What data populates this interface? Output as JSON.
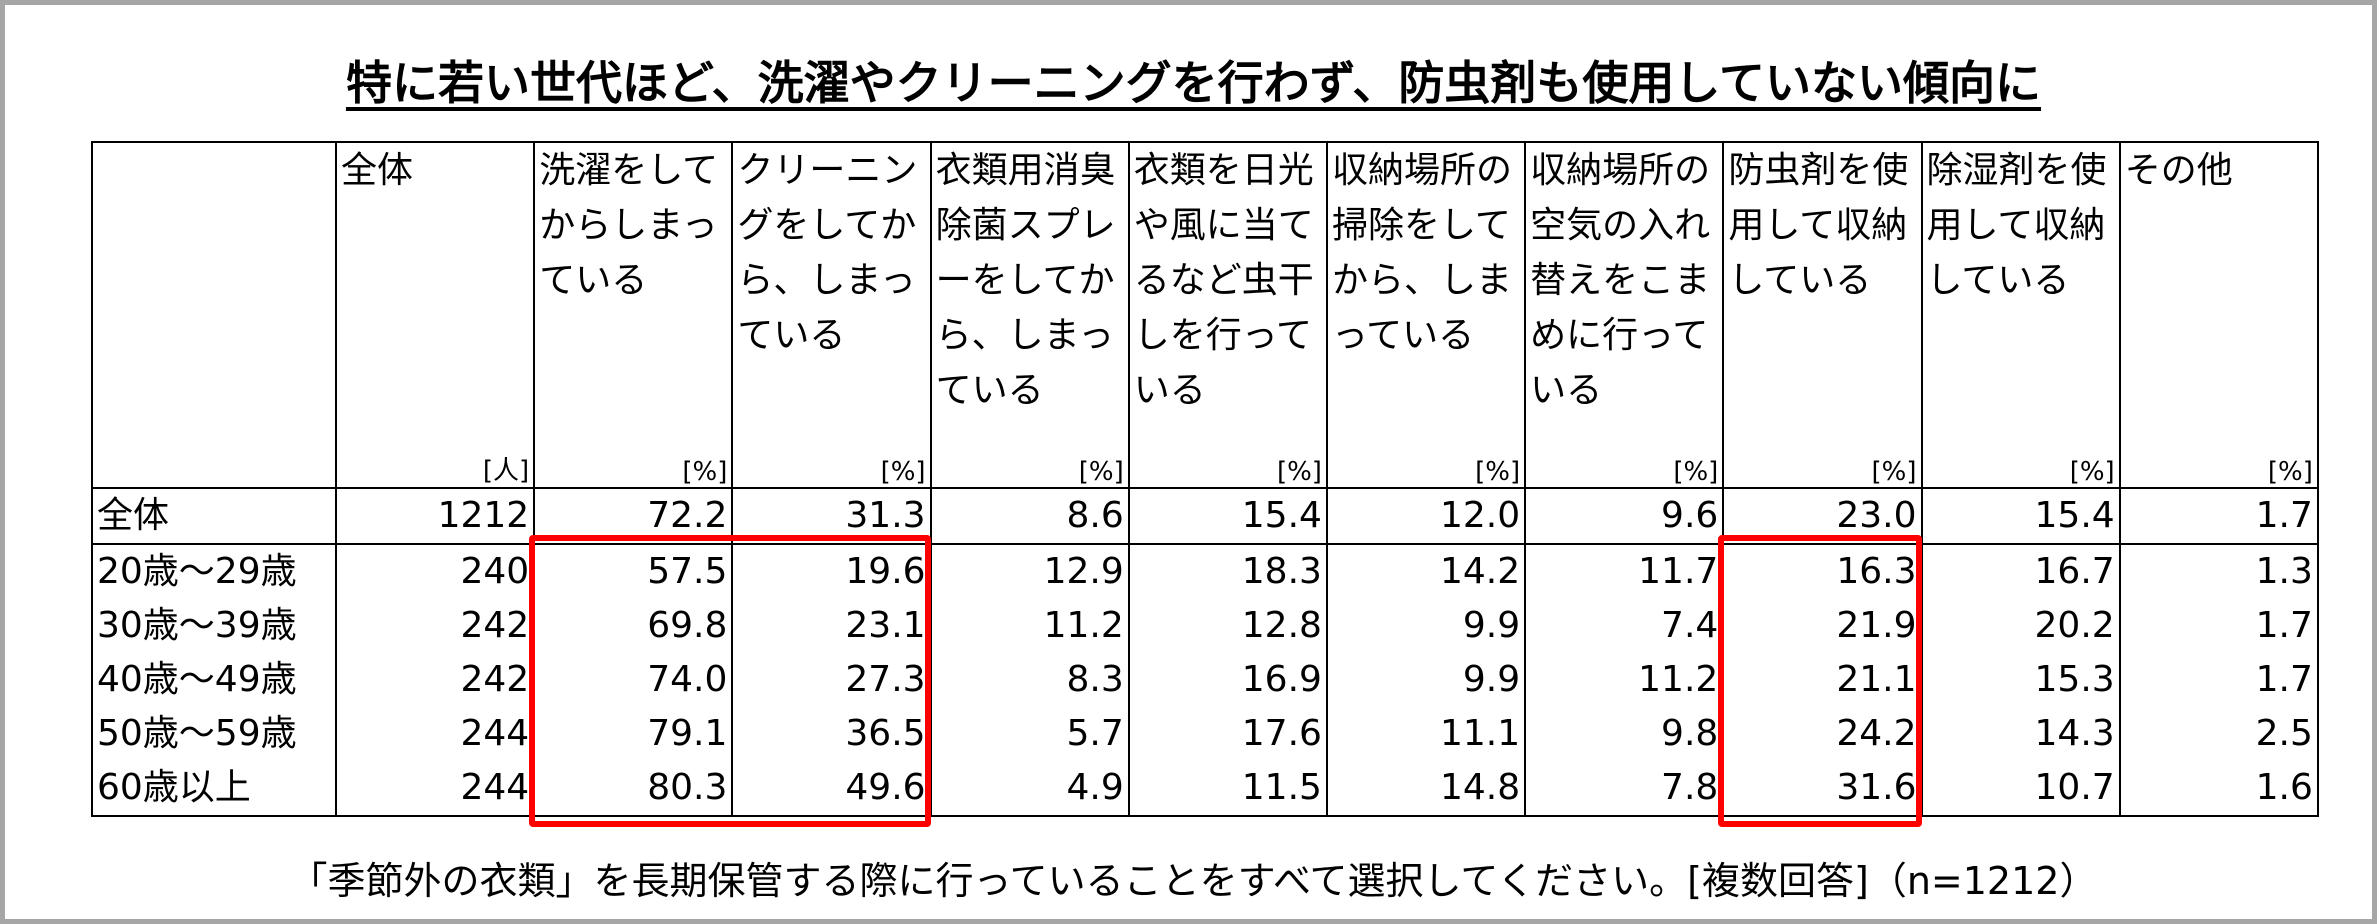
{
  "header": {
    "title": "特に若い世代ほど、洗濯やクリーニングを行わず、防虫剤も使用していない傾向に"
  },
  "table": {
    "columns": [
      "全体",
      "洗濯をしてからしまっている",
      "クリーニングをしてから、しまっている",
      "衣類用消臭除菌スプレーをしてから、しまっている",
      "衣類を日光や風に当てるなど虫干しを行っている",
      "収納場所の掃除をしてから、しまっている",
      "収納場所の空気の入れ替えをこまめに行っている",
      "防虫剤を使用して収納している",
      "除湿剤を使用して収納している",
      "その他"
    ],
    "units": [
      "[人]",
      "[%]",
      "[%]",
      "[%]",
      "[%]",
      "[%]",
      "[%]",
      "[%]",
      "[%]",
      "[%]"
    ],
    "rows": [
      {
        "label": "全体",
        "values": [
          "1212",
          "72.2",
          "31.3",
          "8.6",
          "15.4",
          "12.0",
          "9.6",
          "23.0",
          "15.4",
          "1.7"
        ]
      },
      {
        "label": "20歳～29歳",
        "values": [
          "240",
          "57.5",
          "19.6",
          "12.9",
          "18.3",
          "14.2",
          "11.7",
          "16.3",
          "16.7",
          "1.3"
        ]
      },
      {
        "label": "30歳～39歳",
        "values": [
          "242",
          "69.8",
          "23.1",
          "11.2",
          "12.8",
          "9.9",
          "7.4",
          "21.9",
          "20.2",
          "1.7"
        ]
      },
      {
        "label": "40歳～49歳",
        "values": [
          "242",
          "74.0",
          "27.3",
          "8.3",
          "16.9",
          "9.9",
          "11.2",
          "21.1",
          "15.3",
          "1.7"
        ]
      },
      {
        "label": "50歳～59歳",
        "values": [
          "244",
          "79.1",
          "36.5",
          "5.7",
          "17.6",
          "11.1",
          "9.8",
          "24.2",
          "14.3",
          "2.5"
        ]
      },
      {
        "label": "60歳以上",
        "values": [
          "244",
          "80.3",
          "49.6",
          "4.9",
          "11.5",
          "14.8",
          "7.8",
          "31.6",
          "10.7",
          "1.6"
        ]
      }
    ]
  },
  "footer": {
    "note": "「季節外の衣類」を長期保管する際に行っていることをすべて選択してください。[複数回答]（n=1212）"
  }
}
